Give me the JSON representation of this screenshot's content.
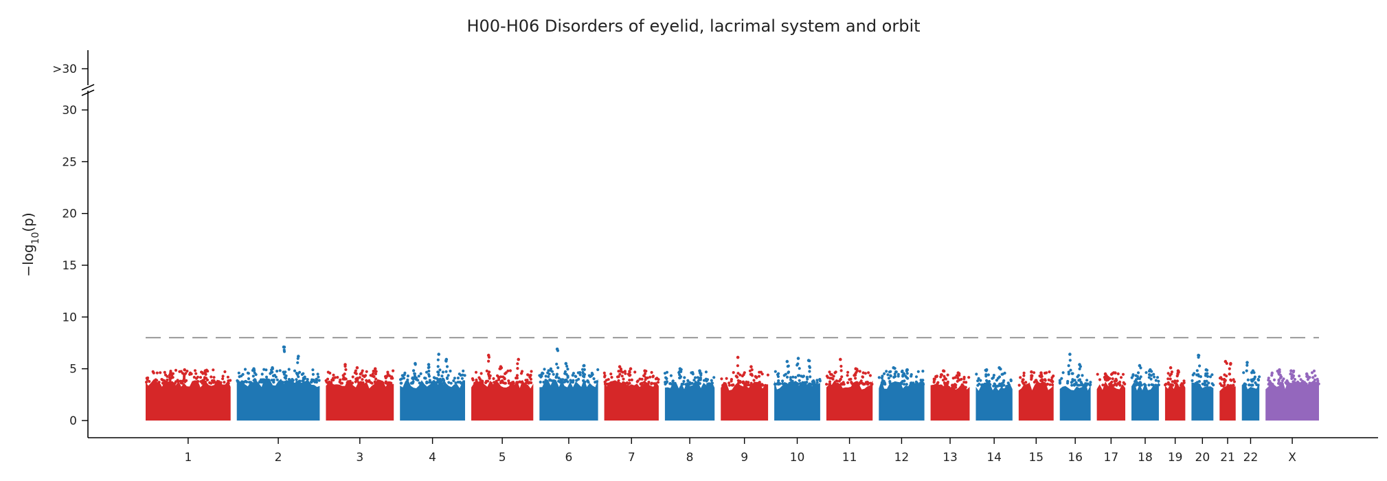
{
  "chart_data": {
    "type": "scatter",
    "title": "H00-H06 Disorders of eyelid, lacrimal system and orbit",
    "ylabel": "−log",
    "ylabel_sub": "10",
    "ylabel_tail": "(p)",
    "xlabel": "",
    "ylim": [
      0,
      30
    ],
    "yticks": [
      0,
      5,
      10,
      15,
      20,
      25,
      30
    ],
    "ytick_labels": [
      "0",
      "5",
      "10",
      "15",
      "20",
      "25",
      "30"
    ],
    "y_overflow_label": ">30",
    "significance_threshold": 8,
    "colors": {
      "red": "#d62728",
      "blue": "#1f77b4",
      "purple": "#9467bd",
      "threshold": "#808080"
    },
    "chromosomes": [
      {
        "name": "1",
        "length": 248,
        "color": "red",
        "base": 4.0,
        "peaks": [
          4.6,
          4.9,
          4.8
        ]
      },
      {
        "name": "2",
        "length": 242,
        "color": "blue",
        "base": 4.1,
        "peaks": [
          5.0,
          5.1,
          7.1,
          6.2
        ]
      },
      {
        "name": "3",
        "length": 198,
        "color": "red",
        "base": 4.0,
        "peaks": [
          5.4,
          5.1,
          5.0
        ]
      },
      {
        "name": "4",
        "length": 190,
        "color": "blue",
        "base": 4.0,
        "peaks": [
          5.5,
          5.4,
          6.4,
          5.9
        ]
      },
      {
        "name": "5",
        "length": 181,
        "color": "red",
        "base": 4.0,
        "peaks": [
          6.3,
          5.2,
          5.9
        ]
      },
      {
        "name": "6",
        "length": 171,
        "color": "blue",
        "base": 4.1,
        "peaks": [
          6.9,
          5.5,
          5.3
        ]
      },
      {
        "name": "7",
        "length": 159,
        "color": "red",
        "base": 3.9,
        "peaks": [
          5.2,
          5.0,
          4.8
        ]
      },
      {
        "name": "8",
        "length": 145,
        "color": "blue",
        "base": 3.9,
        "peaks": [
          5.0,
          4.8
        ]
      },
      {
        "name": "9",
        "length": 138,
        "color": "red",
        "base": 3.8,
        "peaks": [
          6.1,
          5.2
        ]
      },
      {
        "name": "10",
        "length": 134,
        "color": "blue",
        "base": 3.9,
        "peaks": [
          5.7,
          6.0,
          5.8
        ]
      },
      {
        "name": "11",
        "length": 135,
        "color": "red",
        "base": 3.9,
        "peaks": [
          5.9,
          5.0
        ]
      },
      {
        "name": "12",
        "length": 133,
        "color": "blue",
        "base": 3.9,
        "peaks": [
          5.1,
          4.9
        ]
      },
      {
        "name": "13",
        "length": 114,
        "color": "red",
        "base": 3.6,
        "peaks": [
          4.8,
          4.6
        ]
      },
      {
        "name": "14",
        "length": 107,
        "color": "blue",
        "base": 3.7,
        "peaks": [
          4.9,
          5.1
        ]
      },
      {
        "name": "15",
        "length": 102,
        "color": "red",
        "base": 3.8,
        "peaks": [
          4.7,
          4.6
        ]
      },
      {
        "name": "16",
        "length": 90,
        "color": "blue",
        "base": 3.8,
        "peaks": [
          6.4,
          5.4
        ]
      },
      {
        "name": "17",
        "length": 83,
        "color": "red",
        "base": 3.8,
        "peaks": [
          4.5,
          4.6
        ]
      },
      {
        "name": "18",
        "length": 80,
        "color": "blue",
        "base": 3.8,
        "peaks": [
          5.3,
          4.9
        ]
      },
      {
        "name": "19",
        "length": 59,
        "color": "red",
        "base": 3.8,
        "peaks": [
          5.1,
          4.8
        ]
      },
      {
        "name": "20",
        "length": 64,
        "color": "blue",
        "base": 3.8,
        "peaks": [
          6.3,
          4.9
        ]
      },
      {
        "name": "21",
        "length": 47,
        "color": "red",
        "base": 3.7,
        "peaks": [
          5.7,
          5.5
        ]
      },
      {
        "name": "22",
        "length": 51,
        "color": "blue",
        "base": 3.8,
        "peaks": [
          5.6,
          4.8
        ]
      },
      {
        "name": "X",
        "length": 156,
        "color": "purple",
        "base": 3.9,
        "peaks": [
          4.9,
          4.8,
          4.5
        ]
      }
    ]
  }
}
